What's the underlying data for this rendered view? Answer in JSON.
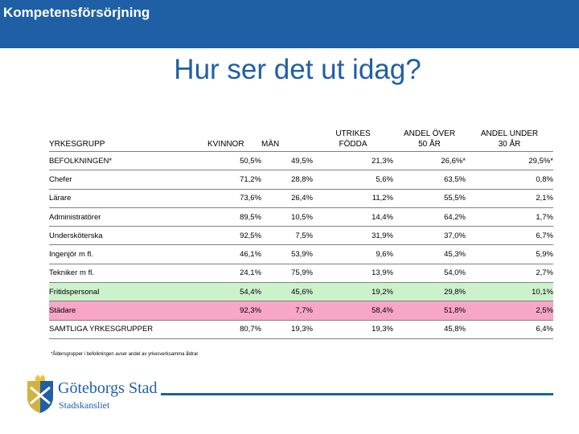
{
  "header": {
    "section_title": "Kompetensförsörjning"
  },
  "slide": {
    "title": "Hur ser det ut idag?"
  },
  "table": {
    "columns": {
      "group": "YRKESGRUPP",
      "women": "KVINNOR",
      "men": "MÄN",
      "foreign_l1": "UTRIKES",
      "foreign_l2": "FÖDDA",
      "over50_l1": "ANDEL ÖVER",
      "over50_l2": "50 ÅR",
      "under30_l1": "ANDEL UNDER",
      "under30_l2": "30 ÅR"
    },
    "rows": [
      {
        "name": "BEFOLKNINGEN*",
        "women": "50,5%",
        "men": "49,5%",
        "foreign": "21,3%",
        "over50": "26,6%*",
        "under30": "29,5%*"
      },
      {
        "name": "Chefer",
        "women": "71,2%",
        "men": "28,8%",
        "foreign": "5,6%",
        "over50": "63,5%",
        "under30": "0,8%"
      },
      {
        "name": "Lärare",
        "women": "73,6%",
        "men": "26,4%",
        "foreign": "11,2%",
        "over50": "55,5%",
        "under30": "2,1%"
      },
      {
        "name": "Administratörer",
        "women": "89,5%",
        "men": "10,5%",
        "foreign": "14,4%",
        "over50": "64,2%",
        "under30": "1,7%"
      },
      {
        "name": "Undersköterska",
        "women": "92,5%",
        "men": "7,5%",
        "foreign": "31,9%",
        "over50": "37,0%",
        "under30": "6,7%"
      },
      {
        "name": "Ingenjör m fl.",
        "women": "46,1%",
        "men": "53,9%",
        "foreign": "9,6%",
        "over50": "45,3%",
        "under30": "5,9%"
      },
      {
        "name": "Tekniker m fl.",
        "women": "24,1%",
        "men": "75,9%",
        "foreign": "13,9%",
        "over50": "54,0%",
        "under30": "2,7%"
      },
      {
        "name": "Fritidspersonal",
        "women": "54,4%",
        "men": "45,6%",
        "foreign": "19,2%",
        "over50": "29,8%",
        "under30": "10,1%"
      },
      {
        "name": "Städare",
        "women": "92,3%",
        "men": "7,7%",
        "foreign": "58,4%",
        "over50": "51,8%",
        "under30": "2,5%"
      },
      {
        "name": "SAMTLIGA YRKESGRUPPER",
        "women": "80,7%",
        "men": "19,3%",
        "foreign": "19,3%",
        "over50": "45,8%",
        "under30": "6,4%"
      }
    ],
    "footnote": "*Åldersgrupper i befolkningen avser andel av yrkesverksamma åldrar"
  },
  "logo": {
    "name": "Göteborgs Stad",
    "unit": "Stadskansliet"
  },
  "colors": {
    "brand_blue": "#1f5fa6",
    "highlight_green": "#ccf2cc",
    "highlight_pink": "#f7a6c8",
    "logo_yellow": "#f2c230"
  }
}
